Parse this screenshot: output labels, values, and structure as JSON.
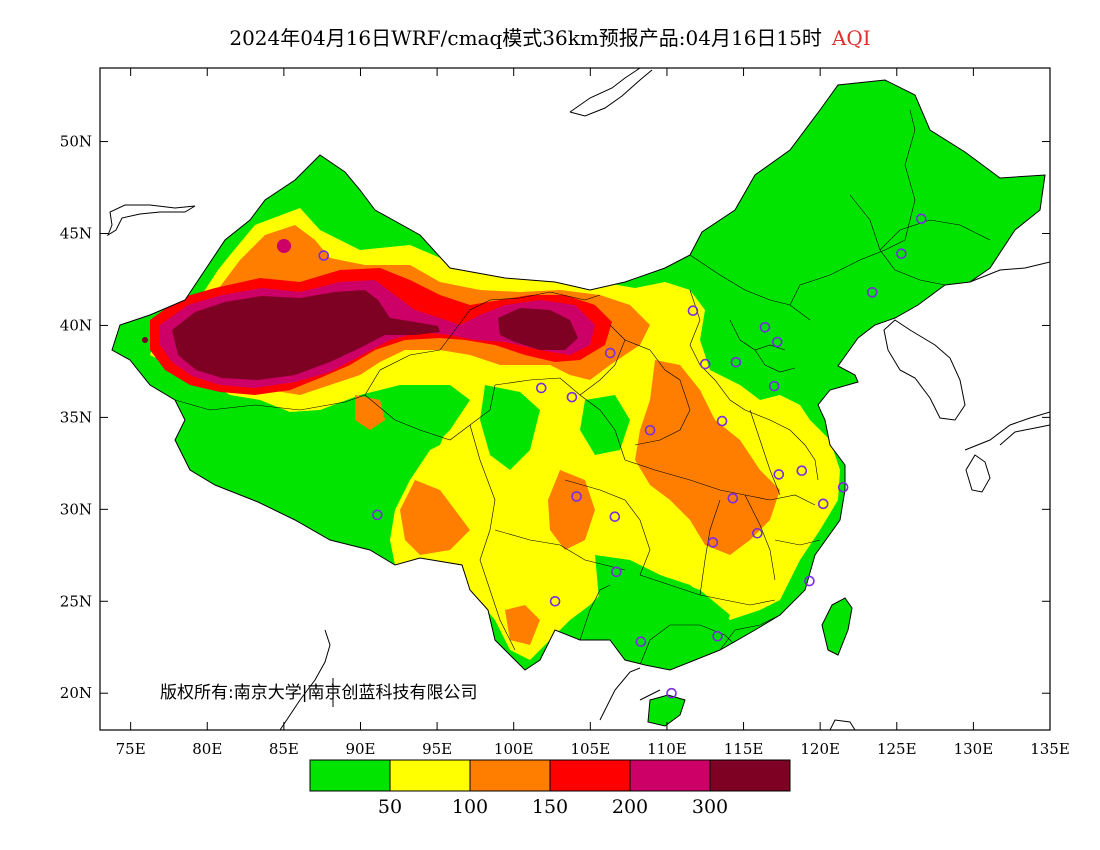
{
  "title": {
    "main": "2024年04月16日WRF/cmaq模式36km预报产品:04月16日15时",
    "variable": "AQI"
  },
  "axes": {
    "lat_labels": [
      "50N",
      "45N",
      "40N",
      "35N",
      "30N",
      "25N",
      "20N"
    ],
    "lat_values": [
      50,
      45,
      40,
      35,
      30,
      25,
      20
    ],
    "lon_labels": [
      "75E",
      "80E",
      "85E",
      "90E",
      "95E",
      "100E",
      "105E",
      "110E",
      "115E",
      "120E",
      "125E",
      "130E",
      "135E"
    ],
    "lon_values": [
      75,
      80,
      85,
      90,
      95,
      100,
      105,
      110,
      115,
      120,
      125,
      130,
      135
    ],
    "lon_range": [
      73,
      135
    ],
    "lat_range": [
      18,
      54
    ]
  },
  "legend": {
    "colors": [
      "#00e400",
      "#ffff00",
      "#ff7e00",
      "#ff0000",
      "#cc0066",
      "#7e0023"
    ],
    "labels": [
      "50",
      "100",
      "150",
      "200",
      "300"
    ]
  },
  "copyright": "版权所有:南京大学|南京创蓝科技有限公司",
  "stations": [
    [
      87.6,
      43.8
    ],
    [
      91.1,
      29.7
    ],
    [
      101.8,
      36.6
    ],
    [
      103.8,
      36.1
    ],
    [
      106.3,
      38.5
    ],
    [
      104.1,
      30.7
    ],
    [
      106.6,
      29.6
    ],
    [
      102.7,
      25.0
    ],
    [
      106.7,
      26.6
    ],
    [
      108.9,
      34.3
    ],
    [
      111.7,
      40.8
    ],
    [
      112.5,
      37.9
    ],
    [
      113.6,
      34.8
    ],
    [
      114.5,
      38.0
    ],
    [
      116.4,
      39.9
    ],
    [
      117.2,
      39.1
    ],
    [
      117.0,
      36.7
    ],
    [
      117.3,
      31.9
    ],
    [
      118.8,
      32.1
    ],
    [
      120.2,
      30.3
    ],
    [
      121.5,
      31.2
    ],
    [
      114.3,
      30.6
    ],
    [
      113.0,
      28.2
    ],
    [
      115.9,
      28.7
    ],
    [
      119.3,
      26.1
    ],
    [
      113.3,
      23.1
    ],
    [
      108.3,
      22.8
    ],
    [
      110.3,
      20.0
    ],
    [
      123.4,
      41.8
    ],
    [
      125.3,
      43.9
    ],
    [
      126.6,
      45.8
    ]
  ]
}
